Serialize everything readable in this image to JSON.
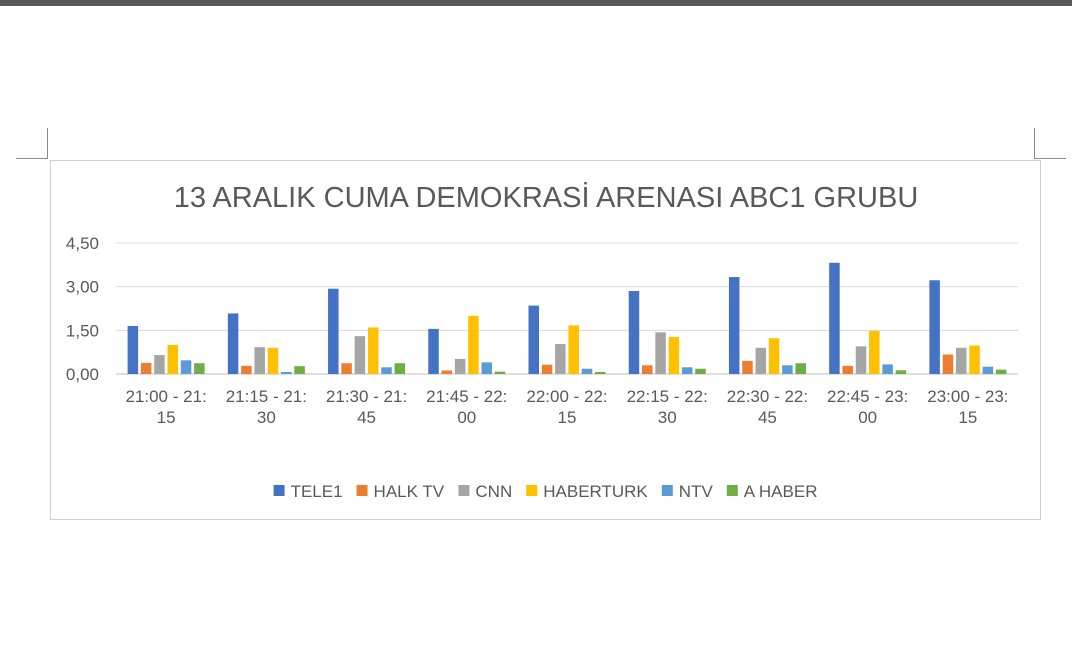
{
  "chart_data": {
    "type": "bar",
    "title": "13 ARALIK CUMA DEMOKRASİ ARENASI ABC1 GRUBU",
    "xlabel": "",
    "ylabel": "",
    "ylim": [
      0,
      4.5
    ],
    "yticks": [
      "0,00",
      "1,50",
      "3,00",
      "4,50"
    ],
    "grid": true,
    "legend_position": "bottom",
    "categories": [
      [
        "21:00 - 21:",
        "15"
      ],
      [
        "21:15 - 21:",
        "30"
      ],
      [
        "21:30 - 21:",
        "45"
      ],
      [
        "21:45 - 22:",
        "00"
      ],
      [
        "22:00 - 22:",
        "15"
      ],
      [
        "22:15 - 22:",
        "30"
      ],
      [
        "22:30 - 22:",
        "45"
      ],
      [
        "22:45 - 23:",
        "00"
      ],
      [
        "23:00 - 23:",
        "15"
      ]
    ],
    "series": [
      {
        "name": "TELE1",
        "color": "#4472c4",
        "values": [
          1.65,
          2.08,
          2.93,
          1.55,
          2.35,
          2.85,
          3.33,
          3.82,
          3.22
        ]
      },
      {
        "name": "HALK TV",
        "color": "#ed7d31",
        "values": [
          0.38,
          0.28,
          0.37,
          0.12,
          0.32,
          0.3,
          0.45,
          0.28,
          0.67
        ]
      },
      {
        "name": "CNN",
        "color": "#a5a5a5",
        "values": [
          0.65,
          0.92,
          1.3,
          0.52,
          1.03,
          1.43,
          0.9,
          0.95,
          0.9
        ]
      },
      {
        "name": "HABERTURK",
        "color": "#ffc000",
        "values": [
          1.0,
          0.9,
          1.6,
          2.0,
          1.67,
          1.27,
          1.23,
          1.48,
          0.98
        ]
      },
      {
        "name": "NTV",
        "color": "#5b9bd5",
        "values": [
          0.47,
          0.07,
          0.23,
          0.4,
          0.18,
          0.23,
          0.3,
          0.33,
          0.25
        ]
      },
      {
        "name": "A HABER",
        "color": "#70ad47",
        "values": [
          0.37,
          0.27,
          0.37,
          0.08,
          0.07,
          0.18,
          0.37,
          0.13,
          0.15
        ]
      }
    ]
  }
}
